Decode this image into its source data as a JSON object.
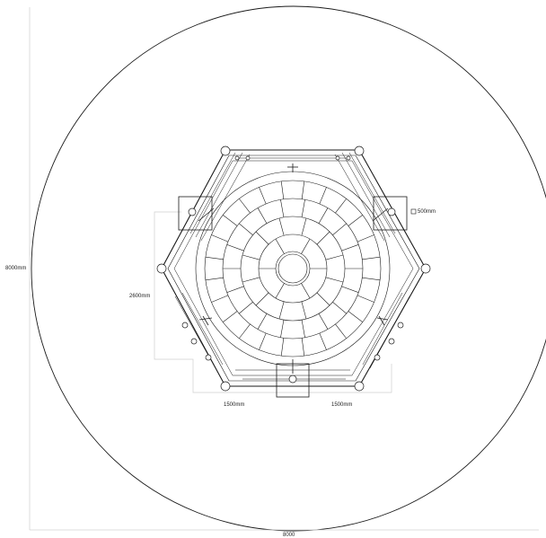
{
  "dimensions": {
    "overall_height": "8000mm",
    "radius": "2600mm",
    "module_box": "500mm",
    "bottom_left": "1500mm",
    "bottom_right": "1500mm",
    "overall_width_cut": "8000"
  },
  "structure": {
    "outer_boundary": "circle",
    "frame": "hexagon",
    "dome": "segmented circular panel grid",
    "rings": 5,
    "spokes_per_ring": [
      6,
      12,
      18,
      24,
      24
    ]
  },
  "colors": {
    "line": "#1a1a1a",
    "dim_line": "#c8c8c8",
    "background": "#ffffff"
  }
}
